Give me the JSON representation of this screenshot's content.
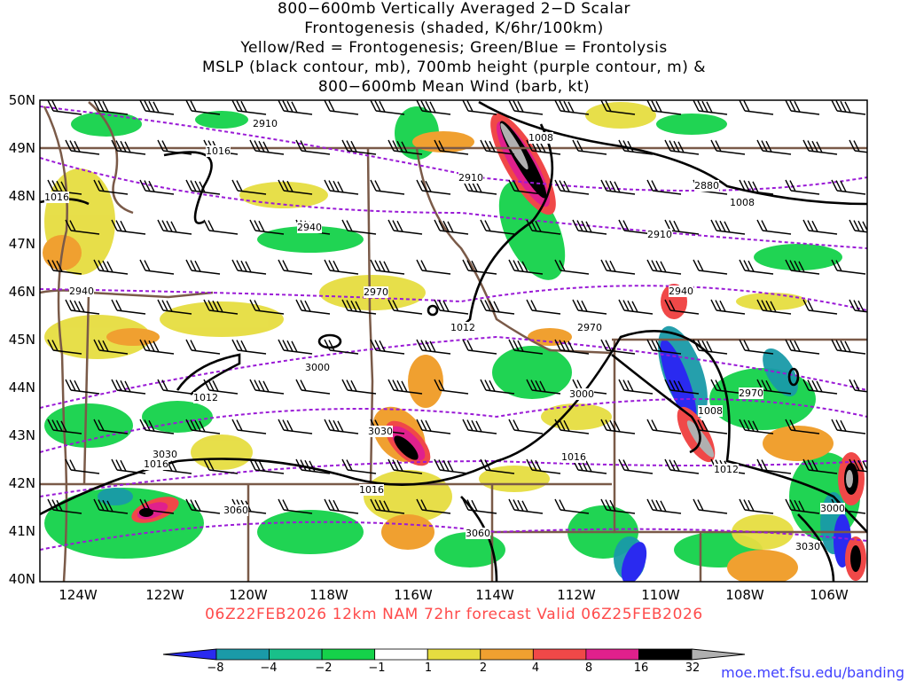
{
  "title": {
    "line1": "800−600mb Vertically Averaged 2−D Scalar",
    "line2": "Frontogenesis (shaded, K/6hr/100km)",
    "line3": "Yellow/Red = Frontogenesis;  Green/Blue = Frontolysis",
    "line4": "MSLP (black contour, mb), 700mb height (purple contour, m) &",
    "line5": "800−600mb Mean Wind (barb, kt)"
  },
  "axes": {
    "lat_labels": [
      "50N",
      "49N",
      "48N",
      "47N",
      "46N",
      "45N",
      "44N",
      "43N",
      "42N",
      "41N",
      "40N"
    ],
    "lon_labels": [
      "124W",
      "122W",
      "120W",
      "118W",
      "116W",
      "114W",
      "112W",
      "110W",
      "108W",
      "106W"
    ]
  },
  "contours": {
    "height_labels": [
      "2910",
      "2880",
      "2940",
      "2910",
      "2970",
      "2940",
      "2970",
      "3000",
      "3000",
      "3030",
      "3030",
      "3060",
      "3060",
      "2970",
      "3000",
      "3030",
      "2910",
      "2940"
    ],
    "mslp_labels": [
      "1016",
      "1016",
      "1008",
      "1008",
      "1012",
      "1012",
      "1008",
      "1016",
      "1016",
      "1012",
      "1016"
    ]
  },
  "caption": "06Z22FEB2026 12km NAM 72hr forecast Valid 06Z25FEB2026",
  "colorbar": {
    "ticks": [
      "−8",
      "−4",
      "−2",
      "−1",
      "1",
      "2",
      "4",
      "8",
      "16",
      "32"
    ],
    "colors": [
      "#2a2af0",
      "#1a9aa8",
      "#19c08a",
      "#15d24a",
      "#ffffff",
      "#e6dd40",
      "#f0a030",
      "#f04848",
      "#e0208c",
      "#000000",
      "#b0b0b0"
    ]
  },
  "credit": "moe.met.fsu.edu/banding",
  "palette": {
    "frontolysis_blue": "#2a2af0",
    "frontolysis_teal": "#1a9aa8",
    "frontolysis_green": "#15d24a",
    "frontogenesis_yellow": "#e6dd40",
    "frontogenesis_orange": "#f0a030",
    "frontogenesis_red": "#f04848",
    "frontogenesis_magenta": "#e0208c",
    "height_contour": "#9a1ad6",
    "mslp_contour": "#000000",
    "border": "#7a5a48"
  }
}
